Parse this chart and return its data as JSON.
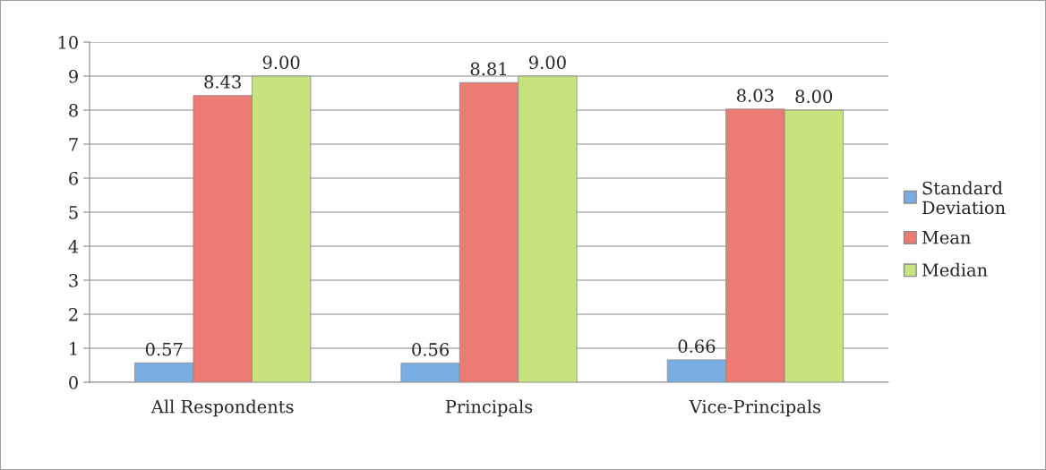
{
  "chart_data": {
    "type": "bar",
    "categories": [
      "All Respondents",
      "Principals",
      "Vice-Principals"
    ],
    "series": [
      {
        "name": "Standard Deviation",
        "color": "#7aaee3",
        "values": [
          0.57,
          0.56,
          0.66
        ],
        "value_labels": [
          "0.57",
          "0.56",
          "0.66"
        ]
      },
      {
        "name": "Mean",
        "color": "#ec7b74",
        "values": [
          8.43,
          8.81,
          8.03
        ],
        "value_labels": [
          "8.43",
          "8.81",
          "8.03"
        ]
      },
      {
        "name": "Median",
        "color": "#c8e27e",
        "values": [
          9.0,
          9.0,
          8.0
        ],
        "value_labels": [
          "9.00",
          "9.00",
          "8.00"
        ]
      }
    ],
    "ylim": [
      0,
      10
    ],
    "yticks": [
      0,
      1,
      2,
      3,
      4,
      5,
      6,
      7,
      8,
      9,
      10
    ],
    "grid": "y",
    "legend": "right"
  }
}
